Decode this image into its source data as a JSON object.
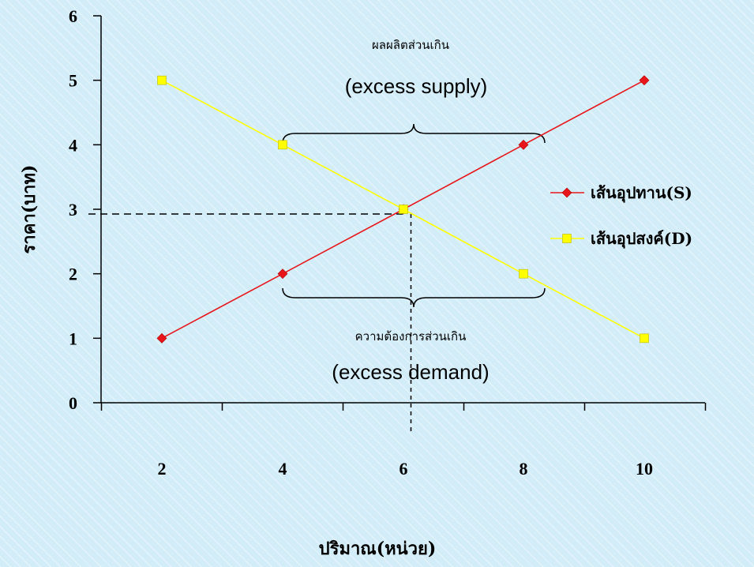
{
  "chart_data": {
    "type": "line",
    "categories": [
      "2",
      "4",
      "6",
      "8",
      "10"
    ],
    "x": [
      2,
      4,
      6,
      8,
      10
    ],
    "series": [
      {
        "name": "เส้นอุปทาน(S)",
        "values": [
          1,
          2,
          3,
          4,
          5
        ],
        "color": "#e8161a",
        "marker": "diamond"
      },
      {
        "name": "เส้นอุปสงค์(D)",
        "values": [
          5,
          4,
          3,
          2,
          1
        ],
        "color": "#ffff00",
        "marker": "square"
      }
    ],
    "xlabel": "ปริมาณ(หน่วย)",
    "ylabel": "ราคา(บาท)",
    "yticks": [
      "0",
      "1",
      "2",
      "3",
      "4",
      "5",
      "6"
    ],
    "ylim": [
      0,
      6
    ],
    "legend_position": "right",
    "grid": false,
    "annotations": {
      "excess_supply_thai": "ผลผลิตส่วนเกิน",
      "excess_supply_en": "(excess supply)",
      "excess_demand_thai": "ความต้องการส่วนเกิน",
      "excess_demand_en": "(excess demand)"
    },
    "equilibrium": {
      "x": 6,
      "y": 3
    }
  }
}
